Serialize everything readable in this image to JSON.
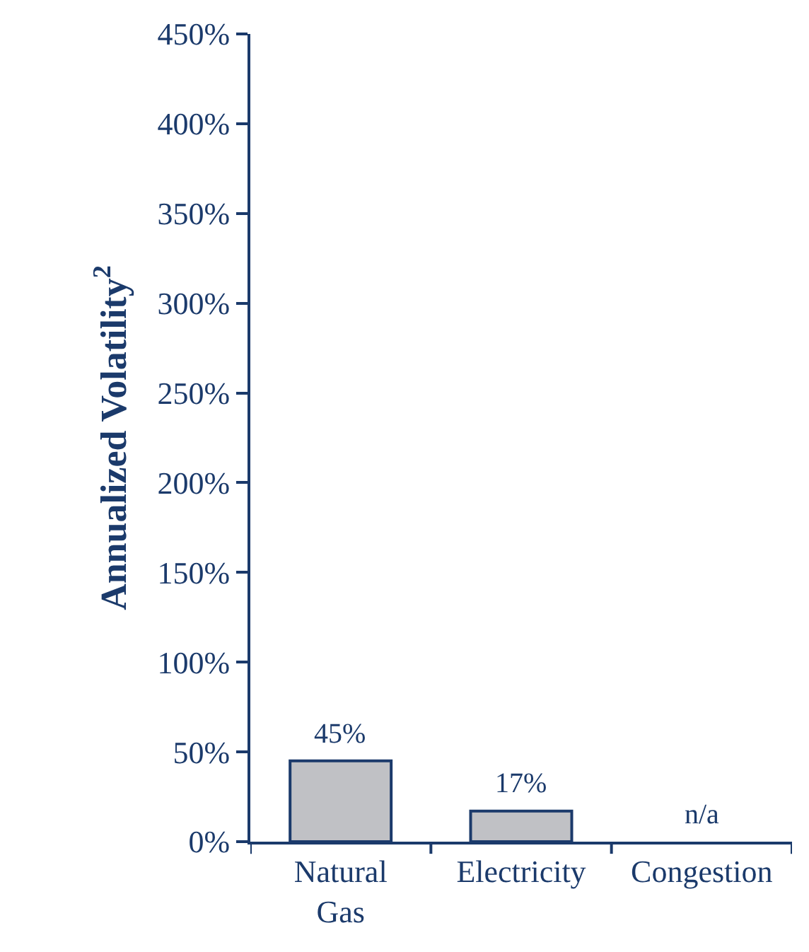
{
  "chart_data": {
    "type": "bar",
    "ylabel": "Annualized Volatility$^{2}$",
    "categories": [
      "Natural Gas",
      "Electricity",
      "Congestion"
    ],
    "values": [
      45,
      17,
      null
    ],
    "value_labels": [
      "45%",
      "17%",
      "n/a"
    ],
    "color": "#c0c1c5",
    "ylim": [
      0,
      450
    ],
    "yticks": [
      {
        "value": 0,
        "label": "0%"
      },
      {
        "value": 50,
        "label": "50%"
      },
      {
        "value": 100,
        "label": "100%"
      },
      {
        "value": 150,
        "label": "150%"
      },
      {
        "value": 200,
        "label": "200%"
      },
      {
        "value": 250,
        "label": "250%"
      },
      {
        "value": 300,
        "label": "300%"
      },
      {
        "value": 350,
        "label": "350%"
      },
      {
        "value": 400,
        "label": "400%"
      },
      {
        "value": 450,
        "label": "450%"
      }
    ]
  }
}
